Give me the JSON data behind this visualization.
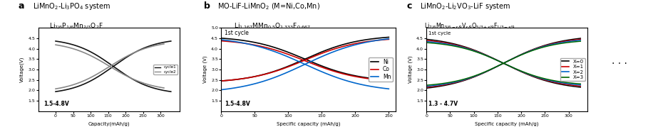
{
  "fig_width": 9.23,
  "fig_height": 1.96,
  "dpi": 100,
  "panel_a": {
    "xlabel": "Capacity(mAh/g)",
    "ylabel": "Voltage(V)",
    "ylim": [
      1.0,
      5.0
    ],
    "xlim": [
      -50,
      355
    ],
    "yticks": [
      1.5,
      2.0,
      2.5,
      3.0,
      3.5,
      4.0,
      4.5
    ],
    "xticks": [
      0,
      50,
      100,
      150,
      200,
      250,
      300
    ],
    "annotation": "1.5-4.8V",
    "legend": [
      "cycle1",
      "cycle2"
    ],
    "legend_colors": [
      "#111111",
      "#888888"
    ]
  },
  "panel_b": {
    "xlabel": "Specific capacity (mAh/g)",
    "ylabel": "Voltage (V)",
    "ylim": [
      1.0,
      5.0
    ],
    "xlim": [
      0,
      260
    ],
    "yticks": [
      1.5,
      2.0,
      2.5,
      3.0,
      3.5,
      4.0,
      4.5,
      5.0
    ],
    "xticks": [
      0,
      50,
      100,
      150,
      200,
      250
    ],
    "annotation": "1.5-4.8V",
    "cycle_label": "1st cycle",
    "legend": [
      "Ni",
      "Co",
      "Mn"
    ],
    "legend_colors": [
      "#000000",
      "#cc0000",
      "#0066cc"
    ]
  },
  "panel_c": {
    "xlabel": "Specific capacity (mAh/g)",
    "ylabel": "Voltage (V)",
    "ylim": [
      1.0,
      5.0
    ],
    "xlim": [
      0,
      340
    ],
    "yticks": [
      1.5,
      2.0,
      2.5,
      3.0,
      3.5,
      4.0,
      4.5
    ],
    "xticks": [
      0,
      50,
      100,
      150,
      200,
      250,
      300
    ],
    "annotation": "1.3 - 4.7V",
    "cycle_label": "1st cycle",
    "legend": [
      "X=0",
      "X=1",
      "X=2",
      "X=3"
    ],
    "legend_colors": [
      "#000000",
      "#cc0000",
      "#0066cc",
      "#006600"
    ]
  },
  "background_color": "#ffffff"
}
